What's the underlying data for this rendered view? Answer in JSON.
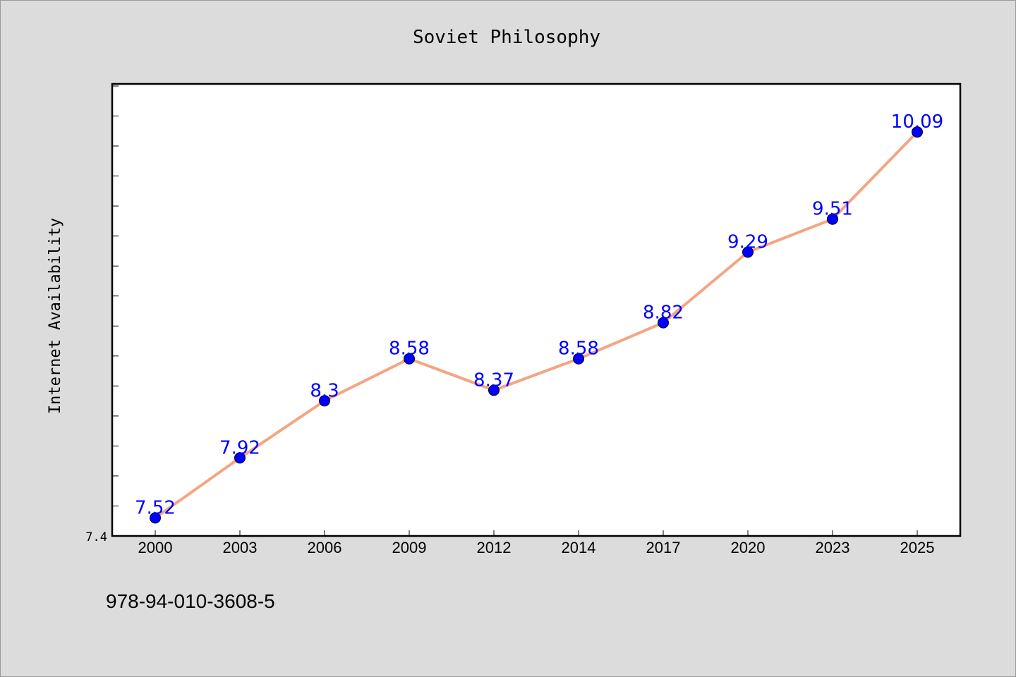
{
  "chart_data": {
    "type": "line",
    "title": "Soviet Philosophy",
    "xlabel": "",
    "ylabel": "Internet Availability",
    "categories": [
      "2000",
      "2003",
      "2006",
      "2009",
      "2012",
      "2014",
      "2017",
      "2020",
      "2023",
      "2025"
    ],
    "series": [
      {
        "values": [
          7.52,
          7.92,
          8.3,
          8.58,
          8.37,
          8.58,
          8.82,
          9.29,
          9.51,
          10.09
        ]
      }
    ],
    "data_labels": [
      "7.52",
      "7.92",
      "8.3",
      "8.58",
      "8.37",
      "8.58",
      "8.82",
      "9.29",
      "9.51",
      "10.09"
    ],
    "ylim": [
      7.4,
      10.41
    ],
    "y_tick_label": "7.4",
    "grid": false,
    "legend": "none",
    "colors": {
      "line": "#f4a582",
      "marker": "#0000ff",
      "data_label": "#0000ff",
      "plot_background": "#ffffff",
      "page_background": "#dcdcdc"
    }
  },
  "footnote": "978-94-010-3608-5"
}
